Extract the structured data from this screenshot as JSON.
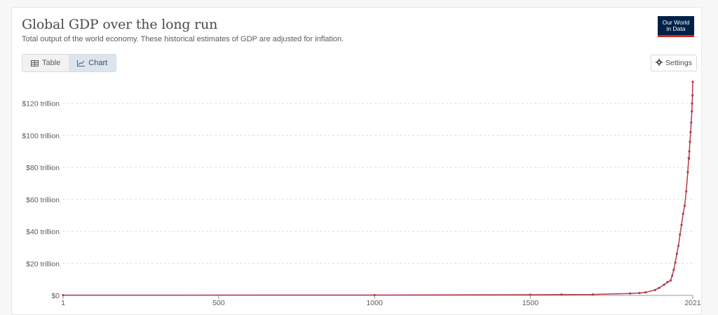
{
  "header": {
    "title": "Global GDP over the long run",
    "subtitle": "Total output of the world economy. These historical estimates of GDP are adjusted for inflation.",
    "logo_line1": "Our World",
    "logo_line2": "in Data"
  },
  "controls": {
    "tabs": [
      {
        "label": "Table",
        "icon": "table-icon",
        "active": false
      },
      {
        "label": "Chart",
        "icon": "line-chart-icon",
        "active": true
      }
    ],
    "settings_label": "Settings",
    "settings_icon": "gear-icon"
  },
  "colors": {
    "series": "#b13c4e",
    "grid": "#dddddd",
    "logo_bg": "#002147",
    "logo_accent": "#ce261e"
  },
  "chart_data": {
    "type": "line",
    "title": "Global GDP over the long run",
    "xlabel": "",
    "ylabel": "",
    "x_ticks": [
      1,
      500,
      1000,
      1500,
      2021
    ],
    "y_ticks": [
      {
        "value": 0,
        "label": "$0"
      },
      {
        "value": 20,
        "label": "$20 trillion"
      },
      {
        "value": 40,
        "label": "$40 trillion"
      },
      {
        "value": 60,
        "label": "$60 trillion"
      },
      {
        "value": 80,
        "label": "$80 trillion"
      },
      {
        "value": 100,
        "label": "$100 trillion"
      },
      {
        "value": 120,
        "label": "$120 trillion"
      }
    ],
    "xlim": [
      1,
      2021
    ],
    "ylim": [
      0,
      133
    ],
    "y_unit": "trillion international-$",
    "grid": "horizontal dashed",
    "legend": "none",
    "series": [
      {
        "name": "",
        "x": [
          1,
          1000,
          1500,
          1600,
          1700,
          1820,
          1850,
          1870,
          1900,
          1913,
          1929,
          1940,
          1950,
          1955,
          1960,
          1965,
          1970,
          1975,
          1980,
          1985,
          1990,
          1995,
          2000,
          2005,
          2008,
          2009,
          2010,
          2012,
          2014,
          2016,
          2018,
          2019,
          2020,
          2021
        ],
        "values": [
          0.18,
          0.2,
          0.43,
          0.55,
          0.6,
          1.2,
          1.5,
          1.9,
          3.4,
          4.7,
          6.7,
          8.3,
          9.3,
          12.3,
          16.0,
          20.5,
          26.0,
          31.0,
          38.0,
          44.0,
          51.0,
          56.0,
          65.0,
          77.0,
          86.0,
          85.5,
          90.0,
          96.0,
          102.0,
          108.0,
          115.0,
          120.0,
          125.0,
          133.5
        ]
      }
    ]
  }
}
